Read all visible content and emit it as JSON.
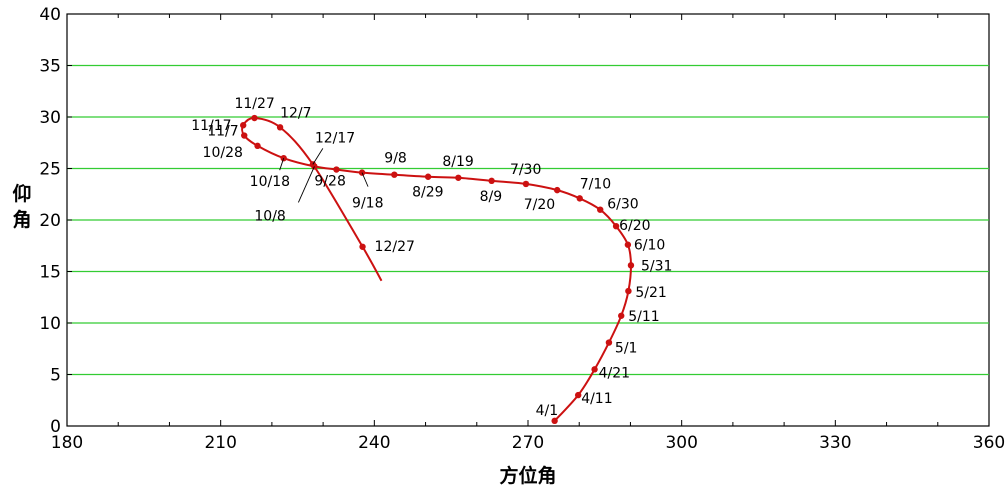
{
  "chart_data": {
    "type": "line",
    "title": "",
    "xlabel": "方位角",
    "ylabel": "仰角",
    "xlim": [
      180,
      360
    ],
    "ylim": [
      0,
      40
    ],
    "x_ticks": [
      180,
      210,
      240,
      270,
      300,
      330,
      360
    ],
    "y_ticks": [
      0,
      5,
      10,
      15,
      20,
      25,
      30,
      35,
      40
    ],
    "grid": "horizontal",
    "colors": {
      "series": "#cc1111",
      "grid": "#33cc33",
      "leader": "#000000"
    },
    "series": [
      {
        "points": [
          {
            "label": "4/1",
            "x": 275.2,
            "y": 0.5
          },
          {
            "label": "4/11",
            "x": 279.8,
            "y": 3.0
          },
          {
            "label": "4/21",
            "x": 283.0,
            "y": 5.5
          },
          {
            "label": "5/1",
            "x": 285.8,
            "y": 8.1
          },
          {
            "label": "5/11",
            "x": 288.2,
            "y": 10.7
          },
          {
            "label": "5/21",
            "x": 289.6,
            "y": 13.1
          },
          {
            "label": "5/31",
            "x": 290.1,
            "y": 15.6
          },
          {
            "label": "6/10",
            "x": 289.5,
            "y": 17.6
          },
          {
            "label": "6/20",
            "x": 287.2,
            "y": 19.4
          },
          {
            "label": "6/30",
            "x": 284.1,
            "y": 21.0
          },
          {
            "label": "7/10",
            "x": 280.1,
            "y": 22.1
          },
          {
            "label": "7/20",
            "x": 275.7,
            "y": 22.9
          },
          {
            "label": "7/30",
            "x": 269.6,
            "y": 23.5
          },
          {
            "label": "8/9",
            "x": 262.9,
            "y": 23.8
          },
          {
            "label": "8/19",
            "x": 256.4,
            "y": 24.1
          },
          {
            "label": "8/29",
            "x": 250.5,
            "y": 24.2
          },
          {
            "label": "9/8",
            "x": 243.9,
            "y": 24.4
          },
          {
            "label": "9/18",
            "x": 237.6,
            "y": 24.6
          },
          {
            "label": "9/28",
            "x": 232.6,
            "y": 24.9
          },
          {
            "label": "10/8",
            "x": 228.3,
            "y": 25.2
          },
          {
            "label": "10/18",
            "x": 222.3,
            "y": 26.0
          },
          {
            "label": "10/28",
            "x": 217.2,
            "y": 27.2
          },
          {
            "label": "11/7",
            "x": 214.6,
            "y": 28.2
          },
          {
            "label": "11/17",
            "x": 214.4,
            "y": 29.2
          },
          {
            "label": "11/27",
            "x": 216.6,
            "y": 29.9
          },
          {
            "label": "12/7",
            "x": 221.6,
            "y": 29.0
          },
          {
            "label": "12/17",
            "x": 228.0,
            "y": 25.4
          },
          {
            "label": "12/27",
            "x": 237.7,
            "y": 17.4
          }
        ],
        "end": {
          "x": 241.4,
          "y": 14.1
        }
      }
    ]
  }
}
